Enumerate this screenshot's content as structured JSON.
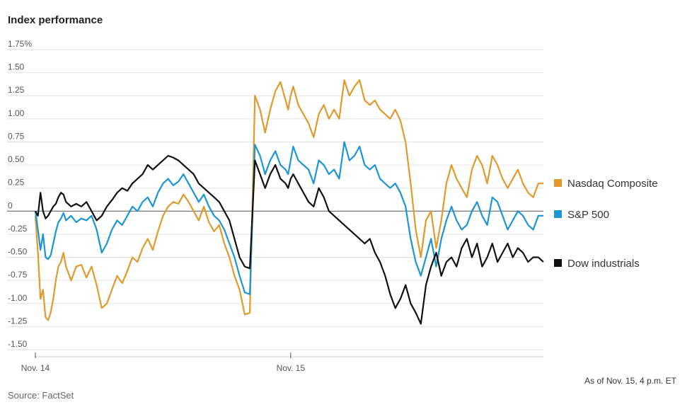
{
  "title": "Index performance",
  "source": "Source: FactSet",
  "note": "As of Nov. 15, 4 p.m. ET",
  "chart_data": {
    "type": "line",
    "title": "Index performance",
    "ylim": [
      -1.5,
      1.75
    ],
    "y_ticks": [
      "1.75%",
      "1.50",
      "1.25",
      "1.00",
      "0.75",
      "0.50",
      "0.25",
      "0",
      "-0.25",
      "-0.50",
      "-0.75",
      "-1.00",
      "-1.25",
      "-1.50"
    ],
    "y_tick_values": [
      1.75,
      1.5,
      1.25,
      1.0,
      0.75,
      0.5,
      0.25,
      0,
      -0.25,
      -0.5,
      -0.75,
      -1.0,
      -1.25,
      -1.5
    ],
    "x_ticks": [
      "Nov. 14",
      "Nov. 15"
    ],
    "x_tick_values": [
      0,
      100
    ],
    "xlim": [
      0,
      199
    ],
    "grid": true,
    "legend": "right",
    "series": [
      {
        "name": "Nasdaq Composite",
        "color": "#E09A2C",
        "x": [
          0,
          1,
          2,
          3,
          4,
          5,
          6,
          7,
          8,
          9,
          10,
          11,
          12,
          14,
          16,
          18,
          20,
          22,
          24,
          26,
          28,
          30,
          32,
          34,
          36,
          38,
          40,
          42,
          44,
          46,
          48,
          50,
          52,
          54,
          56,
          58,
          60,
          62,
          64,
          66,
          68,
          70,
          72,
          74,
          76,
          78,
          80,
          82,
          84,
          86,
          88,
          90,
          92,
          94,
          96,
          98,
          99,
          100,
          101,
          103,
          105,
          107,
          109,
          111,
          113,
          115,
          117,
          119,
          121,
          123,
          125,
          127,
          129,
          131,
          133,
          135,
          137,
          139,
          141,
          143,
          145,
          147,
          149,
          151,
          153,
          155,
          157,
          159,
          161,
          163,
          165,
          167,
          169,
          171,
          173,
          175,
          177,
          179,
          181,
          183,
          185,
          187,
          189,
          191,
          193,
          195,
          197,
          199
        ],
        "values": [
          -0.05,
          -0.45,
          -0.95,
          -0.85,
          -1.15,
          -1.18,
          -1.1,
          -0.95,
          -0.75,
          -0.6,
          -0.55,
          -0.45,
          -0.6,
          -0.75,
          -0.6,
          -0.58,
          -0.72,
          -0.6,
          -0.8,
          -1.05,
          -1.0,
          -0.85,
          -0.7,
          -0.78,
          -0.65,
          -0.5,
          -0.55,
          -0.4,
          -0.3,
          -0.42,
          -0.22,
          -0.05,
          0.05,
          0.1,
          0.08,
          0.18,
          0.1,
          0.0,
          -0.1,
          0.05,
          -0.12,
          -0.22,
          -0.15,
          -0.35,
          -0.5,
          -0.7,
          -0.85,
          -1.12,
          -1.1,
          1.25,
          1.1,
          0.85,
          1.1,
          1.3,
          1.4,
          1.2,
          1.1,
          1.25,
          1.35,
          1.15,
          1.05,
          0.95,
          0.8,
          1.05,
          1.15,
          1.0,
          1.1,
          1.0,
          1.42,
          1.25,
          1.35,
          1.42,
          1.2,
          1.15,
          1.2,
          1.1,
          1.05,
          1.0,
          1.1,
          0.98,
          0.75,
          0.3,
          -0.2,
          -0.5,
          -0.1,
          0.0,
          -0.4,
          -0.1,
          0.3,
          0.5,
          0.35,
          0.25,
          0.15,
          0.45,
          0.6,
          0.5,
          0.3,
          0.6,
          0.5,
          0.35,
          0.25,
          0.35,
          0.45,
          0.3,
          0.2,
          0.15,
          0.3,
          0.3
        ]
      },
      {
        "name": "S&P 500",
        "color": "#1B95D5",
        "x": [
          0,
          1,
          2,
          3,
          4,
          5,
          6,
          7,
          8,
          9,
          10,
          11,
          12,
          14,
          16,
          18,
          20,
          22,
          24,
          26,
          28,
          30,
          32,
          34,
          36,
          38,
          40,
          42,
          44,
          46,
          48,
          50,
          52,
          54,
          56,
          58,
          60,
          62,
          64,
          66,
          68,
          70,
          72,
          74,
          76,
          78,
          80,
          82,
          84,
          86,
          88,
          90,
          92,
          94,
          96,
          98,
          99,
          100,
          101,
          103,
          105,
          107,
          109,
          111,
          113,
          115,
          117,
          119,
          121,
          123,
          125,
          127,
          129,
          131,
          133,
          135,
          137,
          139,
          141,
          143,
          145,
          147,
          149,
          151,
          153,
          155,
          157,
          159,
          161,
          163,
          165,
          167,
          169,
          171,
          173,
          175,
          177,
          179,
          181,
          183,
          185,
          187,
          189,
          191,
          193,
          195,
          197,
          199
        ],
        "values": [
          0.0,
          -0.2,
          -0.42,
          -0.25,
          -0.5,
          -0.52,
          -0.48,
          -0.35,
          -0.22,
          -0.12,
          -0.08,
          -0.02,
          -0.1,
          -0.05,
          -0.12,
          -0.08,
          -0.1,
          -0.05,
          -0.2,
          -0.45,
          -0.35,
          -0.2,
          -0.1,
          -0.15,
          -0.05,
          0.05,
          0.0,
          0.1,
          0.15,
          0.05,
          0.2,
          0.3,
          0.35,
          0.28,
          0.32,
          0.4,
          0.3,
          0.2,
          0.1,
          0.18,
          0.05,
          -0.05,
          -0.1,
          -0.2,
          -0.35,
          -0.5,
          -0.7,
          -0.88,
          -0.9,
          0.72,
          0.6,
          0.4,
          0.55,
          0.65,
          0.5,
          0.45,
          0.4,
          0.55,
          0.7,
          0.55,
          0.5,
          0.45,
          0.3,
          0.55,
          0.5,
          0.4,
          0.45,
          0.35,
          0.75,
          0.55,
          0.6,
          0.7,
          0.5,
          0.45,
          0.5,
          0.35,
          0.3,
          0.25,
          0.3,
          0.2,
          0.05,
          -0.3,
          -0.55,
          -0.7,
          -0.5,
          -0.3,
          -0.6,
          -0.3,
          -0.1,
          0.05,
          -0.1,
          -0.2,
          -0.15,
          0.0,
          0.1,
          -0.05,
          -0.15,
          0.15,
          0.1,
          -0.05,
          -0.2,
          -0.1,
          0.0,
          -0.05,
          -0.15,
          -0.2,
          -0.05,
          -0.05
        ]
      },
      {
        "name": "Dow industrials",
        "color": "#111111",
        "x": [
          0,
          1,
          2,
          3,
          4,
          5,
          6,
          7,
          8,
          9,
          10,
          11,
          12,
          14,
          16,
          18,
          20,
          22,
          24,
          26,
          28,
          30,
          32,
          34,
          36,
          38,
          40,
          42,
          44,
          46,
          48,
          50,
          52,
          54,
          56,
          58,
          60,
          62,
          64,
          66,
          68,
          70,
          72,
          74,
          76,
          78,
          80,
          82,
          84,
          86,
          88,
          90,
          92,
          94,
          96,
          98,
          99,
          100,
          101,
          103,
          105,
          107,
          109,
          111,
          113,
          115,
          117,
          119,
          121,
          123,
          125,
          127,
          129,
          131,
          133,
          135,
          137,
          139,
          141,
          143,
          145,
          147,
          149,
          151,
          153,
          155,
          157,
          159,
          161,
          163,
          165,
          167,
          169,
          171,
          173,
          175,
          177,
          179,
          181,
          183,
          185,
          187,
          189,
          191,
          193,
          195,
          197,
          199
        ],
        "values": [
          0.0,
          -0.05,
          0.2,
          0.0,
          -0.08,
          -0.05,
          0.0,
          0.05,
          0.08,
          0.15,
          0.2,
          0.18,
          0.1,
          0.05,
          0.08,
          0.05,
          0.1,
          0.0,
          -0.1,
          -0.05,
          0.05,
          0.12,
          0.2,
          0.25,
          0.22,
          0.3,
          0.35,
          0.4,
          0.5,
          0.45,
          0.5,
          0.55,
          0.6,
          0.58,
          0.55,
          0.5,
          0.45,
          0.4,
          0.3,
          0.25,
          0.2,
          0.15,
          0.1,
          0.0,
          -0.1,
          -0.3,
          -0.5,
          -0.6,
          -0.62,
          0.55,
          0.4,
          0.25,
          0.4,
          0.5,
          0.35,
          0.3,
          0.25,
          0.35,
          0.4,
          0.3,
          0.2,
          0.1,
          0.05,
          0.25,
          0.15,
          0.0,
          -0.05,
          -0.1,
          -0.15,
          -0.2,
          -0.25,
          -0.3,
          -0.35,
          -0.3,
          -0.45,
          -0.55,
          -0.7,
          -0.9,
          -1.05,
          -0.95,
          -0.8,
          -1.0,
          -1.1,
          -1.22,
          -0.8,
          -0.6,
          -0.45,
          -0.7,
          -0.55,
          -0.5,
          -0.6,
          -0.4,
          -0.3,
          -0.5,
          -0.35,
          -0.6,
          -0.5,
          -0.35,
          -0.55,
          -0.45,
          -0.35,
          -0.5,
          -0.4,
          -0.45,
          -0.55,
          -0.5,
          -0.5,
          -0.55
        ]
      }
    ]
  }
}
